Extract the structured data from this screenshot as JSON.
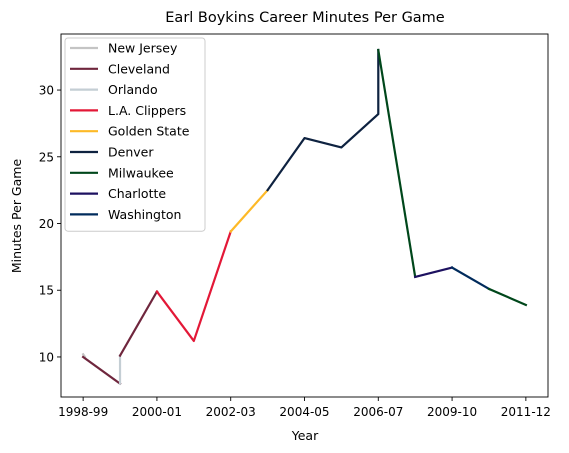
{
  "chart_data": {
    "type": "line",
    "title": "Earl Boykins Career Minutes Per Game",
    "xlabel": "Year",
    "ylabel": "Minutes Per Game",
    "x_ticks": [
      "1998-99",
      "2000-01",
      "2002-03",
      "2004-05",
      "2006-07",
      "2009-10",
      "2011-12"
    ],
    "x_tick_positions": [
      0,
      2,
      4,
      6,
      8,
      10,
      12
    ],
    "y_ticks": [
      10,
      15,
      20,
      25,
      30
    ],
    "xlim": [
      -0.6,
      12.6
    ],
    "ylim": [
      7,
      34.2
    ],
    "legend_position": "upper-left",
    "series": [
      {
        "name": "New Jersey",
        "color": "#c4c4c4",
        "points": [
          [
            0,
            10.2
          ],
          [
            0.05,
            10.0
          ]
        ]
      },
      {
        "name": "Cleveland",
        "color": "#6f263d",
        "points": [
          [
            0,
            10.0
          ],
          [
            1,
            8.0
          ]
        ]
      },
      {
        "name": "Orlando",
        "color": "#c4ced4",
        "points": [
          [
            1,
            8.0
          ],
          [
            1,
            10.1
          ]
        ]
      },
      {
        "name": "Cleveland",
        "color": "#6f263d",
        "points": [
          [
            1,
            10.1
          ],
          [
            2,
            14.9
          ]
        ]
      },
      {
        "name": "L.A. Clippers",
        "color": "#e31837",
        "points": [
          [
            2,
            14.9
          ],
          [
            3,
            11.2
          ],
          [
            4,
            19.4
          ]
        ]
      },
      {
        "name": "Golden State",
        "color": "#fdb927",
        "points": [
          [
            4,
            19.4
          ],
          [
            5,
            22.5
          ]
        ]
      },
      {
        "name": "Denver",
        "color": "#0e2240",
        "points": [
          [
            5,
            22.5
          ],
          [
            6,
            26.4
          ],
          [
            7,
            25.7
          ],
          [
            8,
            28.2
          ],
          [
            8,
            33.0
          ]
        ]
      },
      {
        "name": "Milwaukee",
        "color": "#00471b",
        "points": [
          [
            8,
            33.0
          ],
          [
            9,
            16.0
          ]
        ]
      },
      {
        "name": "Charlotte",
        "color": "#1d1160",
        "points": [
          [
            9,
            16.0
          ],
          [
            10,
            16.7
          ]
        ]
      },
      {
        "name": "Washington",
        "color": "#002b5c",
        "points": [
          [
            10,
            16.7
          ],
          [
            11,
            15.1
          ]
        ]
      },
      {
        "name": "Milwaukee",
        "color": "#00471b",
        "points": [
          [
            11,
            15.1
          ],
          [
            12,
            13.9
          ]
        ]
      }
    ],
    "legend": [
      {
        "label": "New Jersey",
        "color": "#c4c4c4"
      },
      {
        "label": "Cleveland",
        "color": "#6f263d"
      },
      {
        "label": "Orlando",
        "color": "#c4ced4"
      },
      {
        "label": "L.A. Clippers",
        "color": "#e31837"
      },
      {
        "label": "Golden State",
        "color": "#fdb927"
      },
      {
        "label": "Denver",
        "color": "#0e2240"
      },
      {
        "label": "Milwaukee",
        "color": "#00471b"
      },
      {
        "label": "Charlotte",
        "color": "#1d1160"
      },
      {
        "label": "Washington",
        "color": "#002b5c"
      }
    ]
  }
}
